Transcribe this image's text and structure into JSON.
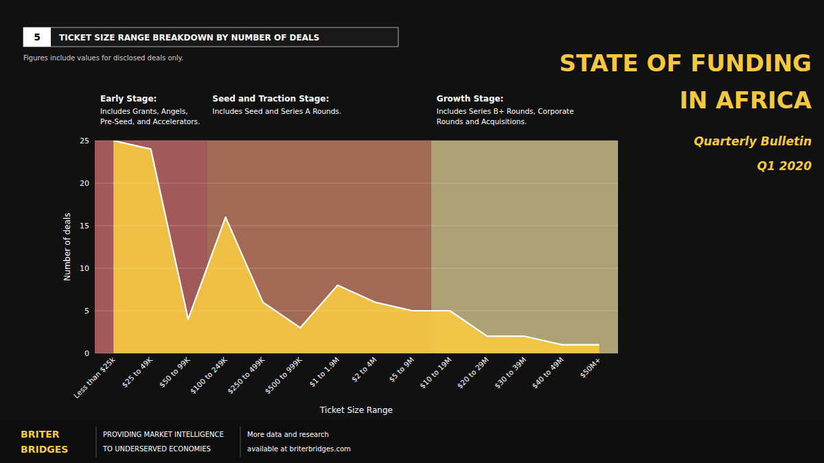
{
  "chart_data": {
    "type": "area",
    "title": "TICKET SIZE RANGE BREAKDOWN BY NUMBER OF DEALS",
    "chart_number": "5",
    "footnote": "Figures  include values for disclosed deals only.",
    "headline": [
      "STATE OF FUNDING",
      "IN AFRICA"
    ],
    "subtitle": [
      "Quarterly Bulletin",
      "Q1 2020"
    ],
    "categories": [
      "Less than $25k",
      "$25 to 49K",
      "$50 to 99K",
      "$100 to 249K",
      "$250 to 499K",
      "$500 to 999K",
      "$1 to 1.9M",
      "$2 to 4M",
      "$5 to 9M",
      "$10 to 19M",
      "$20 to 29M",
      "$30 to 39M",
      "$40 to 49M",
      "$50M+"
    ],
    "values": [
      25,
      24,
      4,
      16,
      6,
      3,
      8,
      6,
      5,
      5,
      2,
      2,
      1,
      1
    ],
    "color": "#f5c842",
    "xlabel": "Ticket Size Range",
    "ylabel": "Number of deals",
    "ylim": [
      0,
      25
    ],
    "yticks": [
      0,
      5,
      10,
      15,
      20,
      25
    ],
    "grid": true,
    "stages": [
      {
        "name": "Early Stage:",
        "description": [
          "Includes Grants, Angels,",
          "Pre-Seed, and Accelerators."
        ],
        "from": "Less than $25k",
        "to": "$50 to 99K",
        "color": "#e07878"
      },
      {
        "name": "Seed and Traction Stage:",
        "description": [
          "Includes Seed and Series A Rounds."
        ],
        "from": "$100 to 249K",
        "to": "$5 to 9M",
        "color": "#e09070"
      },
      {
        "name": "Growth Stage:",
        "description": [
          "Includes Series B+ Rounds, Corporate",
          "Rounds and Acquisitions."
        ],
        "from": "$10 to 19M",
        "to": "$50M+",
        "color": "#f0dda0"
      }
    ],
    "branding": [
      "BRITER",
      "BRIDGES",
      "PROVIDING MARKET INTELLIGENCE",
      "TO UNDERSERVED ECONOMIES",
      "More data and research",
      "available at briterbridges.com"
    ]
  }
}
